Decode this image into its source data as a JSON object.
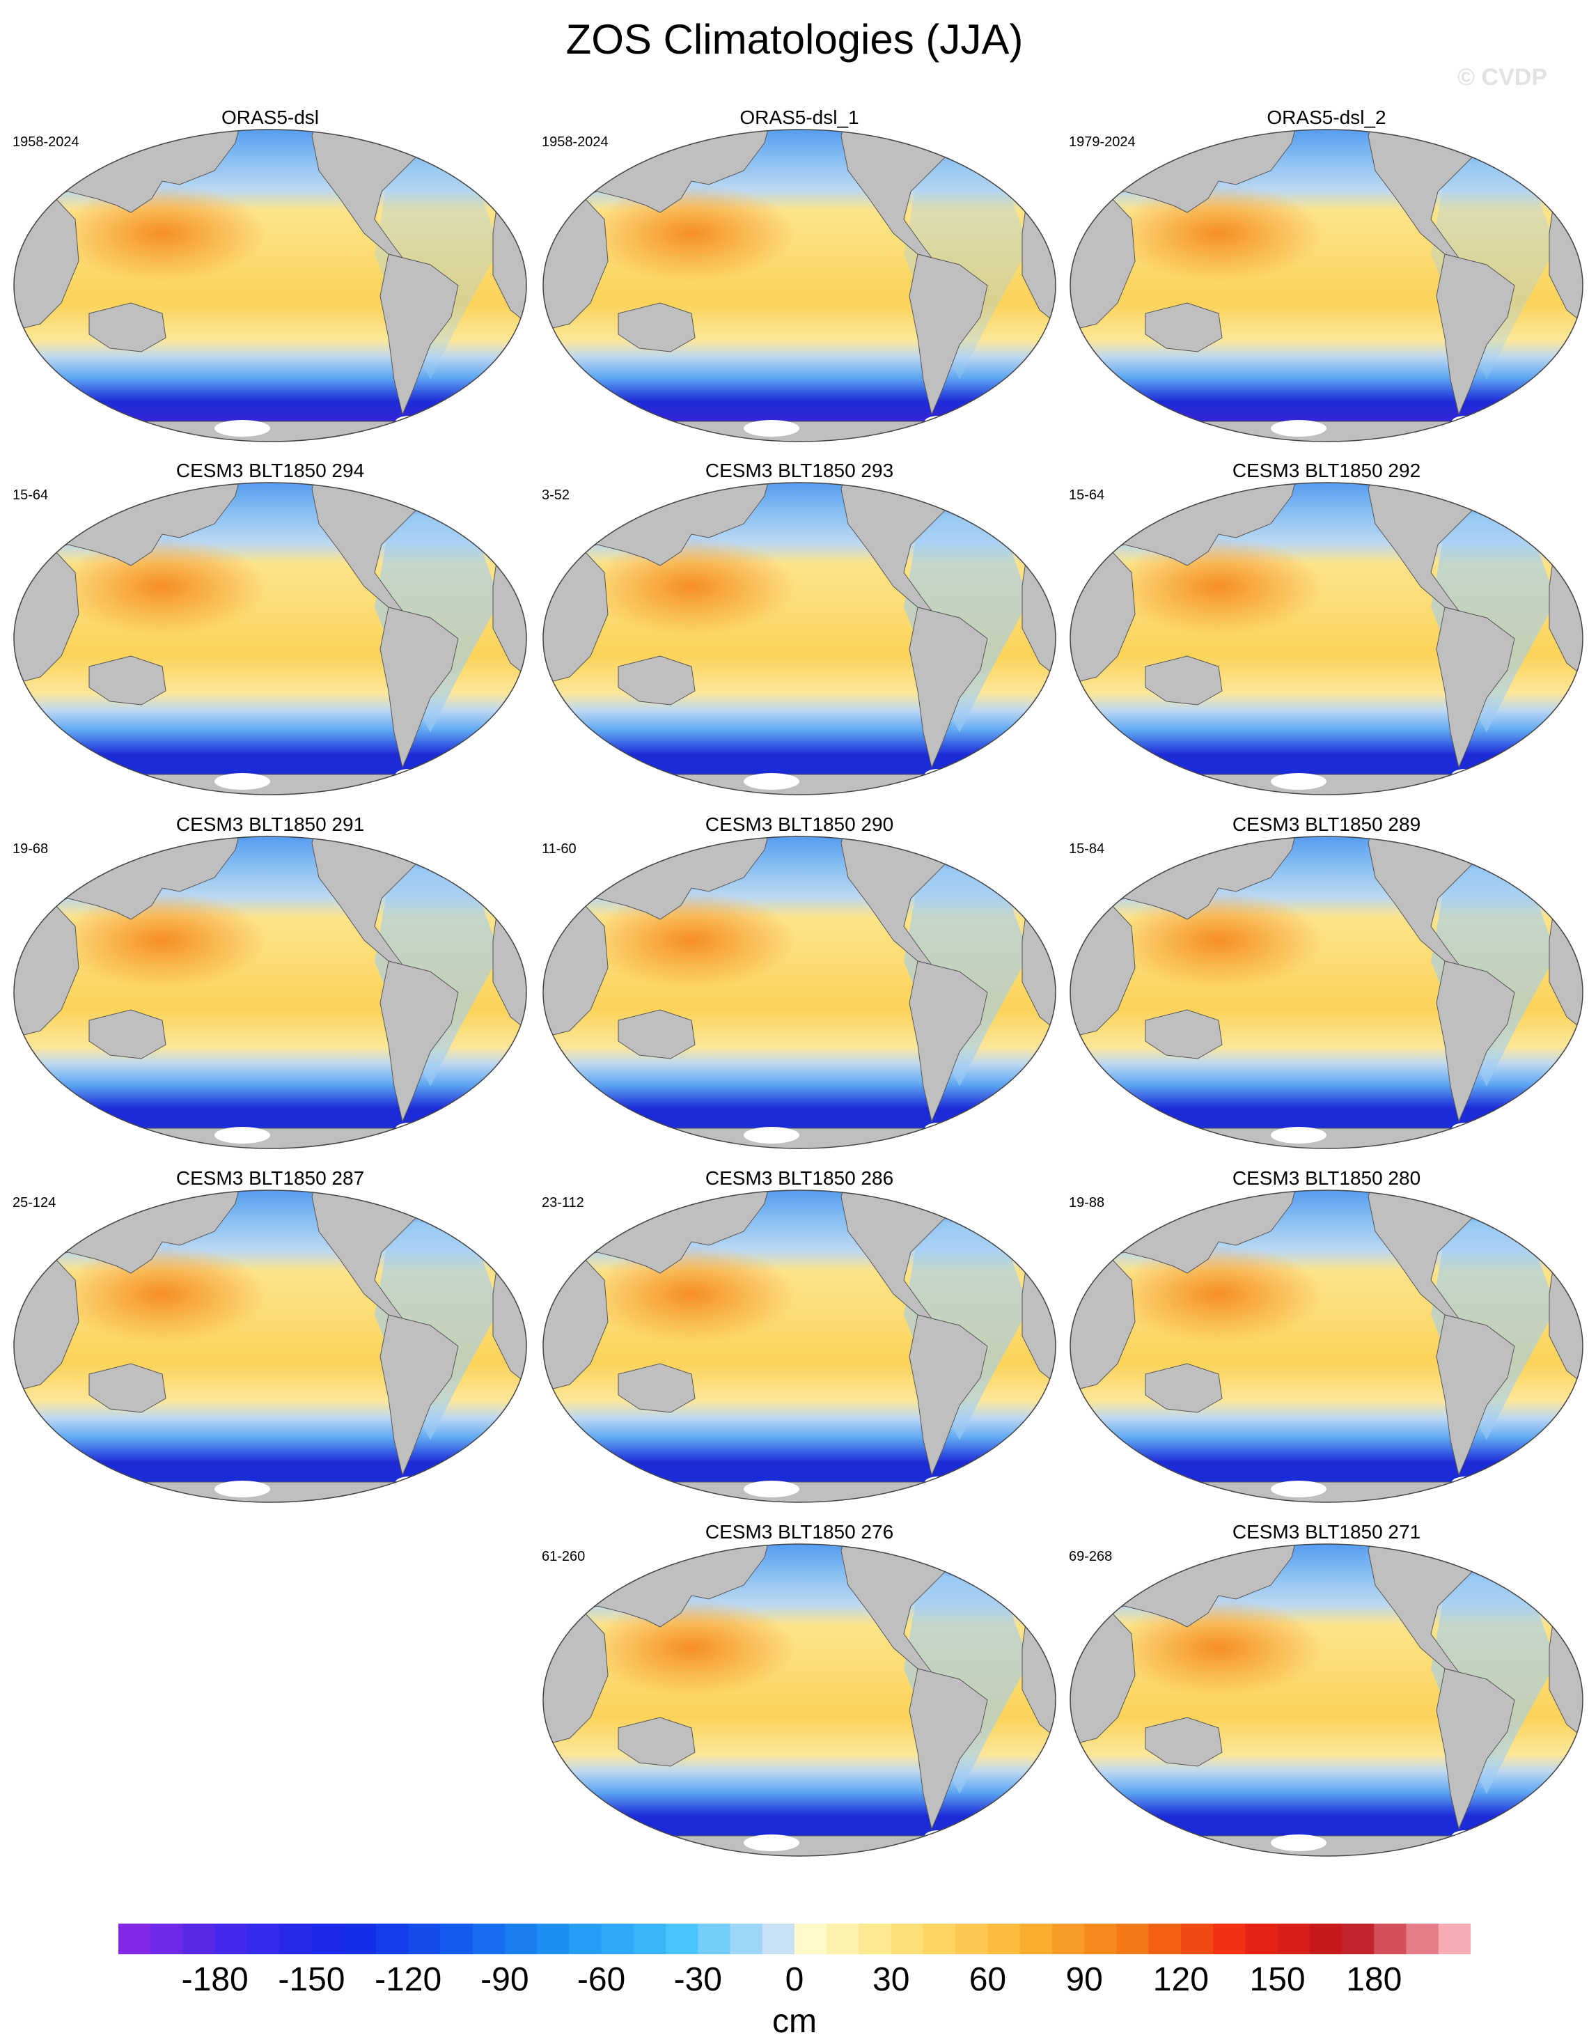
{
  "title": "ZOS Climatologies (JJA)",
  "watermark": "© CVDP",
  "panels": [
    {
      "title": "ORAS5-dsl",
      "years": "1958-2024",
      "variant": "obs"
    },
    {
      "title": "ORAS5-dsl_1",
      "years": "1958-2024",
      "variant": "obs"
    },
    {
      "title": "ORAS5-dsl_2",
      "years": "1979-2024",
      "variant": "obs"
    },
    {
      "title": "CESM3 BLT1850 294",
      "years": "15-64",
      "variant": "model"
    },
    {
      "title": "CESM3 BLT1850 293",
      "years": "3-52",
      "variant": "model"
    },
    {
      "title": "CESM3 BLT1850 292",
      "years": "15-64",
      "variant": "model"
    },
    {
      "title": "CESM3 BLT1850 291",
      "years": "19-68",
      "variant": "model"
    },
    {
      "title": "CESM3 BLT1850 290",
      "years": "11-60",
      "variant": "model"
    },
    {
      "title": "CESM3 BLT1850 289",
      "years": "15-84",
      "variant": "model"
    },
    {
      "title": "CESM3 BLT1850 287",
      "years": "25-124",
      "variant": "model"
    },
    {
      "title": "CESM3 BLT1850 286",
      "years": "23-112",
      "variant": "model"
    },
    {
      "title": "CESM3 BLT1850 280",
      "years": "19-88",
      "variant": "model"
    },
    {
      "title": "CESM3 BLT1850 276",
      "years": "61-260",
      "variant": "model"
    },
    {
      "title": "CESM3 BLT1850 271",
      "years": "69-268",
      "variant": "model"
    }
  ],
  "colorbar": {
    "ticks": [
      "-180",
      "-150",
      "-120",
      "-90",
      "-60",
      "-30",
      "0",
      "30",
      "60",
      "90",
      "120",
      "150",
      "180"
    ],
    "unit": "cm",
    "range": [
      -210,
      210
    ]
  },
  "colors": {
    "land": "#bfbfbf",
    "ocean_deep_neg": "#1c2bd8",
    "ocean_neg": "#3c8cf0",
    "ocean_light_neg": "#bcd8f2",
    "ocean_pos": "#fbd35a",
    "ocean_high_pos": "#f58a1e"
  }
}
